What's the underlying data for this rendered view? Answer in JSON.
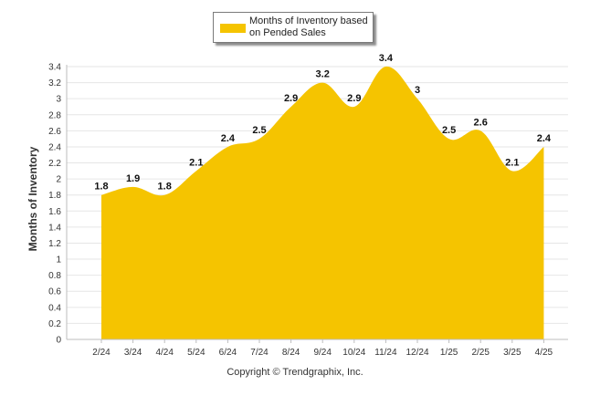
{
  "chart_data": {
    "type": "area",
    "categories": [
      "2/24",
      "3/24",
      "4/24",
      "5/24",
      "6/24",
      "7/24",
      "8/24",
      "9/24",
      "10/24",
      "11/24",
      "12/24",
      "1/25",
      "2/25",
      "3/25",
      "4/25"
    ],
    "series": [
      {
        "name": "Months of Inventory based on Pended Sales",
        "values": [
          1.8,
          1.9,
          1.8,
          2.1,
          2.4,
          2.5,
          2.9,
          3.2,
          2.9,
          3.4,
          3,
          2.5,
          2.6,
          2.1,
          2.4
        ]
      }
    ],
    "ylabel": "Months of Inventory",
    "xlabel": "",
    "ylim": [
      0,
      3.4
    ],
    "yticks": [
      0,
      0.2,
      0.4,
      0.6,
      0.8,
      1,
      1.2,
      1.4,
      1.6,
      1.8,
      2,
      2.2,
      2.4,
      2.6,
      2.8,
      3,
      3.2,
      3.4
    ],
    "grid": true,
    "legend_position": "top-center",
    "fill_color": "#f5c400"
  },
  "copyright": "Copyright © Trendgraphix, Inc."
}
